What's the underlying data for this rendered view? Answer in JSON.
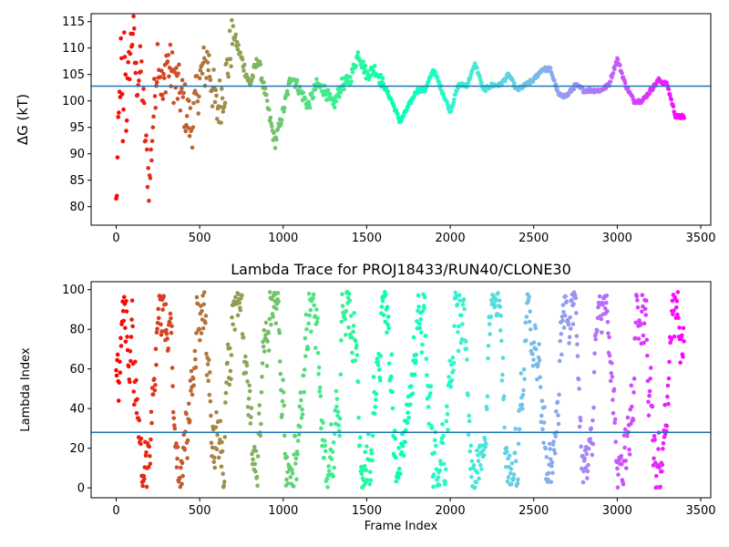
{
  "chart_data": [
    {
      "type": "scatter",
      "title": "",
      "xlabel": "",
      "ylabel": "ΔG (kT)",
      "xlim": [
        -150,
        3560
      ],
      "ylim": [
        76.5,
        116.5
      ],
      "x_ticks": [
        0,
        500,
        1000,
        1500,
        2000,
        2500,
        3000,
        3500
      ],
      "y_ticks": [
        80,
        85,
        90,
        95,
        100,
        105,
        110,
        115
      ],
      "hline": 102.8,
      "hline_color": "#1f77b4",
      "colormap": "rainbow (reversed: red at frame 0 → purple at last frame)",
      "n_frames": 3400,
      "series": [
        {
          "points_sampled": [
            [
              0,
              80
            ],
            [
              20,
              100
            ],
            [
              30,
              110
            ],
            [
              40,
              90
            ],
            [
              50,
              115
            ],
            [
              60,
              97
            ],
            [
              80,
              108
            ],
            [
              100,
              114
            ],
            [
              120,
              104
            ],
            [
              150,
              106
            ],
            [
              180,
              90
            ],
            [
              200,
              84
            ],
            [
              220,
              96
            ],
            [
              250,
              110
            ],
            [
              280,
              100
            ],
            [
              300,
              108
            ],
            [
              350,
              104
            ],
            [
              400,
              100
            ],
            [
              450,
              95
            ],
            [
              500,
              104
            ],
            [
              550,
              108
            ],
            [
              600,
              98
            ],
            [
              650,
              103
            ],
            [
              700,
              113
            ],
            [
              750,
              108
            ],
            [
              800,
              103
            ],
            [
              850,
              108
            ],
            [
              900,
              100
            ],
            [
              950,
              92
            ],
            [
              1000,
              98
            ],
            [
              1050,
              105
            ],
            [
              1100,
              102
            ],
            [
              1150,
              99
            ],
            [
              1200,
              103
            ],
            [
              1250,
              102
            ],
            [
              1300,
              99
            ],
            [
              1350,
              103
            ],
            [
              1400,
              104
            ],
            [
              1450,
              109
            ],
            [
              1500,
              105
            ],
            [
              1550,
              106
            ],
            [
              1600,
              103
            ],
            [
              1650,
              100
            ],
            [
              1700,
              96
            ],
            [
              1750,
              99
            ],
            [
              1800,
              102
            ],
            [
              1850,
              102
            ],
            [
              1900,
              106
            ],
            [
              1950,
              102
            ],
            [
              2000,
              98
            ],
            [
              2050,
              103
            ],
            [
              2100,
              103
            ],
            [
              2150,
              107
            ],
            [
              2200,
              102
            ],
            [
              2250,
              103
            ],
            [
              2300,
              103
            ],
            [
              2350,
              105
            ],
            [
              2400,
              102
            ],
            [
              2450,
              103
            ],
            [
              2500,
              104
            ],
            [
              2550,
              106
            ],
            [
              2600,
              106
            ],
            [
              2650,
              101
            ],
            [
              2700,
              101
            ],
            [
              2750,
              103
            ],
            [
              2800,
              102
            ],
            [
              2850,
              102
            ],
            [
              2900,
              102
            ],
            [
              2950,
              103
            ],
            [
              3000,
              108
            ],
            [
              3050,
              103
            ],
            [
              3100,
              100
            ],
            [
              3150,
              100
            ],
            [
              3200,
              102
            ],
            [
              3250,
              104
            ],
            [
              3300,
              103
            ],
            [
              3350,
              97
            ],
            [
              3400,
              97
            ]
          ]
        }
      ]
    },
    {
      "type": "scatter",
      "title": "Lambda Trace for PROJ18433/RUN40/CLONE30",
      "xlabel": "Frame Index",
      "ylabel": "Lambda Index",
      "xlim": [
        -150,
        3560
      ],
      "ylim": [
        -5,
        104
      ],
      "x_ticks": [
        0,
        500,
        1000,
        1500,
        2000,
        2500,
        3000,
        3500
      ],
      "y_ticks": [
        0,
        20,
        40,
        60,
        80,
        100
      ],
      "hline": 28,
      "hline_color": "#1f77b4",
      "colormap": "rainbow (reversed: red at frame 0 → purple at last frame)",
      "n_frames": 3400,
      "value_range": [
        0,
        99
      ]
    }
  ]
}
